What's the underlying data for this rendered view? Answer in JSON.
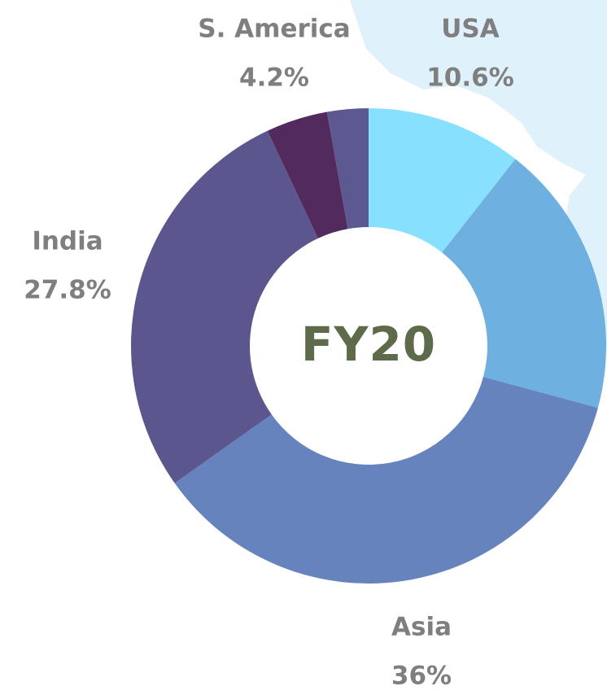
{
  "chart_data": {
    "type": "pie",
    "center_label": "FY20",
    "categories": [
      "USA",
      null,
      "Asia",
      "India",
      "S. America",
      null
    ],
    "values": [
      10.6,
      18.6,
      36,
      27.8,
      4.2,
      2.8
    ],
    "value_labels": [
      "10.6%",
      null,
      "36%",
      "27.8%",
      "4.2%",
      null
    ],
    "colors": [
      "#87e0fd",
      "#6eb0e0",
      "#6683bd",
      "#5b578e",
      "#522a5e",
      "#5c5890"
    ]
  }
}
